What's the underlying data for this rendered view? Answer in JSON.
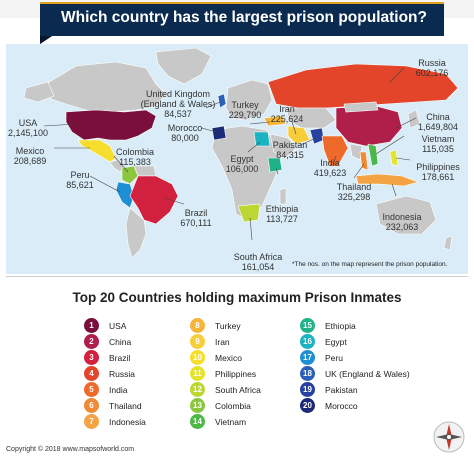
{
  "title": "Which country has the largest prison population?",
  "subtitle": "Top 20 Countries holding maximum Prison Inmates",
  "note": "*The nos. on the map represent the prison population.",
  "copyright": "Copyright © 2018 www.mapsofworld.com",
  "logo_icon": "mapsofworld-compass-logo",
  "colors": {
    "banner": "#0a2a4f",
    "banner_accent": "#e0a21c",
    "ocean": "#d9ecf7",
    "land": "#c8c8c8"
  },
  "map_labels": [
    {
      "id": "usa",
      "name": "USA",
      "value": "2,145,100"
    },
    {
      "id": "mexico",
      "name": "Mexico",
      "value": "208,689"
    },
    {
      "id": "colombia",
      "name": "Colombia",
      "value": "115,383"
    },
    {
      "id": "peru",
      "name": "Peru",
      "value": "85,621"
    },
    {
      "id": "brazil",
      "name": "Brazil",
      "value": "670,111"
    },
    {
      "id": "uk",
      "name": "United Kingdom",
      "name2": "(England & Wales)",
      "value": "84,537"
    },
    {
      "id": "morocco",
      "name": "Morocco",
      "value": "80,000"
    },
    {
      "id": "turkey",
      "name": "Turkey",
      "value": "229,790"
    },
    {
      "id": "iran",
      "name": "Iran",
      "value": "225,624"
    },
    {
      "id": "pakistan",
      "name": "Pakistan",
      "value": "84,315"
    },
    {
      "id": "india",
      "name": "India",
      "value": "419,623"
    },
    {
      "id": "egypt",
      "name": "Egypt",
      "value": "106,000"
    },
    {
      "id": "ethiopia",
      "name": "Ethiopia",
      "value": "113,727"
    },
    {
      "id": "southafrica",
      "name": "South Africa",
      "value": "161,054"
    },
    {
      "id": "russia",
      "name": "Russia",
      "value": "602,176"
    },
    {
      "id": "china",
      "name": "China",
      "value": "1,649,804"
    },
    {
      "id": "vietnam",
      "name": "Vietnam",
      "value": "115,035"
    },
    {
      "id": "philippines",
      "name": "Philippines",
      "value": "178,661"
    },
    {
      "id": "thailand",
      "name": "Thailand",
      "value": "325,298"
    },
    {
      "id": "indonesia",
      "name": "Indonesia",
      "value": "232,063"
    }
  ],
  "legend": [
    {
      "rank": "1",
      "name": "USA",
      "color": "#7a0f3c"
    },
    {
      "rank": "2",
      "name": "China",
      "color": "#b01e4a"
    },
    {
      "rank": "3",
      "name": "Brazil",
      "color": "#d2203f"
    },
    {
      "rank": "4",
      "name": "Russia",
      "color": "#e2452a"
    },
    {
      "rank": "5",
      "name": "India",
      "color": "#ee6a2a"
    },
    {
      "rank": "6",
      "name": "Thailand",
      "color": "#f08a35"
    },
    {
      "rank": "7",
      "name": "Indonesia",
      "color": "#f3a244"
    },
    {
      "rank": "8",
      "name": "Turkey",
      "color": "#f5b53a"
    },
    {
      "rank": "9",
      "name": "Iran",
      "color": "#f8cd3a"
    },
    {
      "rank": "10",
      "name": "Mexico",
      "color": "#f6dd2e"
    },
    {
      "rank": "11",
      "name": "Philippines",
      "color": "#e3e42c"
    },
    {
      "rank": "12",
      "name": "South Africa",
      "color": "#bcd733"
    },
    {
      "rank": "13",
      "name": "Colombia",
      "color": "#8cc63f"
    },
    {
      "rank": "14",
      "name": "Vietnam",
      "color": "#4cb848"
    },
    {
      "rank": "15",
      "name": "Ethiopia",
      "color": "#1fb38a"
    },
    {
      "rank": "16",
      "name": "Egypt",
      "color": "#19b3c1"
    },
    {
      "rank": "17",
      "name": "Peru",
      "color": "#1f8fd3"
    },
    {
      "rank": "18",
      "name": "UK (England & Wales)",
      "color": "#2b5fb8"
    },
    {
      "rank": "19",
      "name": "Pakistan",
      "color": "#2841a0"
    },
    {
      "rank": "20",
      "name": "Morocco",
      "color": "#1b2b7a"
    }
  ]
}
